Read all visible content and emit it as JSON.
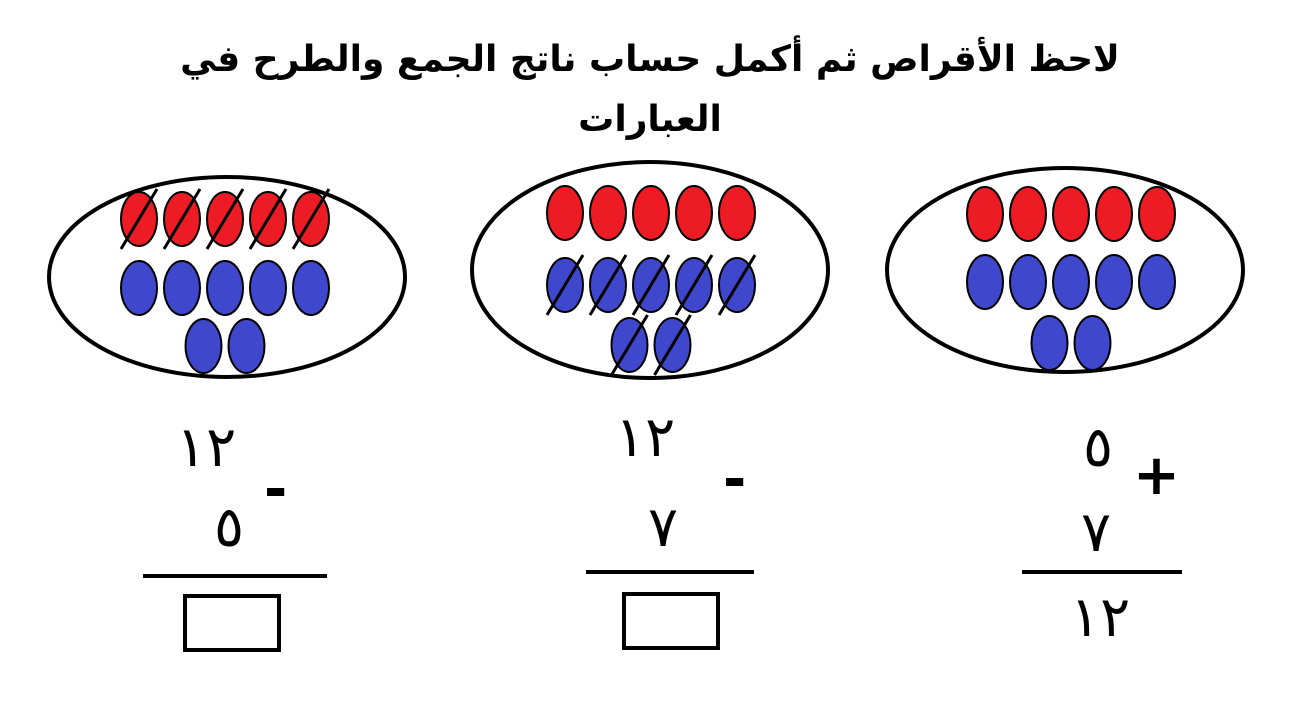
{
  "title": "لاحظ الأقراص ثم أكمل حساب ناتج الجمع والطرح في العبارات",
  "colors": {
    "red": "#ed1c24",
    "blue": "#3f48cc",
    "outline": "#000000"
  },
  "problems": [
    {
      "operation": "addition",
      "operator": "+",
      "top": "٥",
      "bottom": "٧",
      "result": "١٢",
      "red_discs": 5,
      "blue_discs": 7,
      "crossed_red": 0,
      "crossed_blue": 0
    },
    {
      "operation": "subtraction",
      "operator": "-",
      "top": "١٢",
      "bottom": "٧",
      "result": "",
      "red_discs": 5,
      "blue_discs": 7,
      "crossed_red": 0,
      "crossed_blue": 7
    },
    {
      "operation": "subtraction",
      "operator": "-",
      "top": "١٢",
      "bottom": "٥",
      "result": "",
      "red_discs": 5,
      "blue_discs": 7,
      "crossed_red": 5,
      "crossed_blue": 0
    }
  ]
}
